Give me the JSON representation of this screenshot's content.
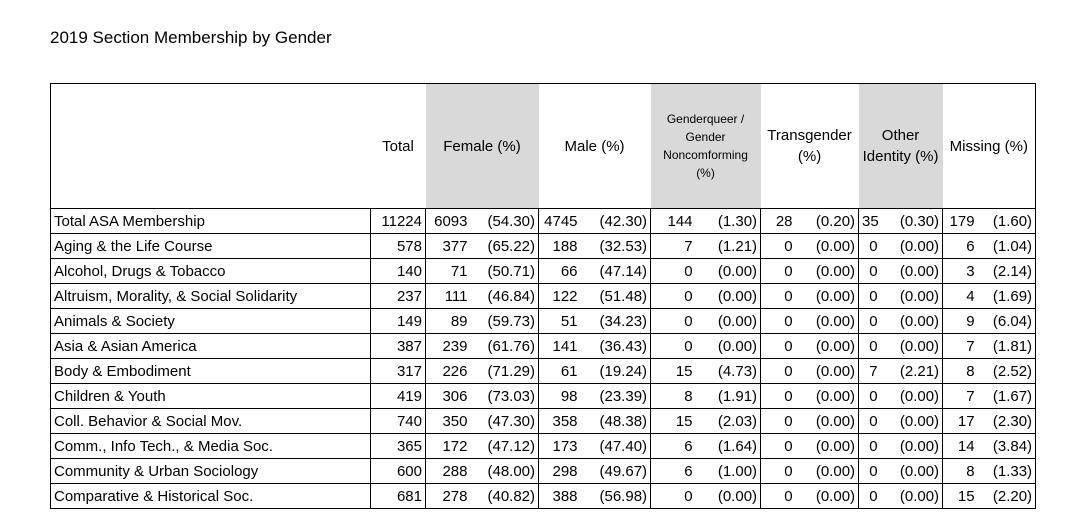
{
  "header": {
    "title": "2019 Section Membership by Gender"
  },
  "table": {
    "columns": [
      "Total",
      "Female (%)",
      "Male (%)",
      "Genderqueer / Gender Noncomforming (%)",
      "Transgender (%)",
      "Other Identity (%)",
      "Missing (%)"
    ],
    "rows": [
      [
        "Total ASA Membership",
        "11224",
        "6093",
        "(54.30)",
        "4745",
        "(42.30)",
        "144",
        "(1.30)",
        "28",
        "(0.20)",
        "35",
        "(0.30)",
        "179",
        "(1.60)"
      ],
      [
        "Aging & the Life Course",
        "578",
        "377",
        "(65.22)",
        "188",
        "(32.53)",
        "7",
        "(1.21)",
        "0",
        "(0.00)",
        "0",
        "(0.00)",
        "6",
        "(1.04)"
      ],
      [
        "Alcohol, Drugs & Tobacco",
        "140",
        "71",
        "(50.71)",
        "66",
        "(47.14)",
        "0",
        "(0.00)",
        "0",
        "(0.00)",
        "0",
        "(0.00)",
        "3",
        "(2.14)"
      ],
      [
        "Altruism, Morality, & Social Solidarity",
        "237",
        "111",
        "(46.84)",
        "122",
        "(51.48)",
        "0",
        "(0.00)",
        "0",
        "(0.00)",
        "0",
        "(0.00)",
        "4",
        "(1.69)"
      ],
      [
        "Animals & Society",
        "149",
        "89",
        "(59.73)",
        "51",
        "(34.23)",
        "0",
        "(0.00)",
        "0",
        "(0.00)",
        "0",
        "(0.00)",
        "9",
        "(6.04)"
      ],
      [
        "Asia & Asian America",
        "387",
        "239",
        "(61.76)",
        "141",
        "(36.43)",
        "0",
        "(0.00)",
        "0",
        "(0.00)",
        "0",
        "(0.00)",
        "7",
        "(1.81)"
      ],
      [
        "Body & Embodiment",
        "317",
        "226",
        "(71.29)",
        "61",
        "(19.24)",
        "15",
        "(4.73)",
        "0",
        "(0.00)",
        "7",
        "(2.21)",
        "8",
        "(2.52)"
      ],
      [
        "Children & Youth",
        "419",
        "306",
        "(73.03)",
        "98",
        "(23.39)",
        "8",
        "(1.91)",
        "0",
        "(0.00)",
        "0",
        "(0.00)",
        "7",
        "(1.67)"
      ],
      [
        "Coll. Behavior & Social Mov.",
        "740",
        "350",
        "(47.30)",
        "358",
        "(48.38)",
        "15",
        "(2.03)",
        "0",
        "(0.00)",
        "0",
        "(0.00)",
        "17",
        "(2.30)"
      ],
      [
        "Comm., Info Tech., & Media Soc.",
        "365",
        "172",
        "(47.12)",
        "173",
        "(47.40)",
        "6",
        "(1.64)",
        "0",
        "(0.00)",
        "0",
        "(0.00)",
        "14",
        "(3.84)"
      ],
      [
        "Community & Urban Sociology",
        "600",
        "288",
        "(48.00)",
        "298",
        "(49.67)",
        "6",
        "(1.00)",
        "0",
        "(0.00)",
        "0",
        "(0.00)",
        "8",
        "(1.33)"
      ],
      [
        "Comparative & Historical Soc.",
        "681",
        "278",
        "(40.82)",
        "388",
        "(56.98)",
        "0",
        "(0.00)",
        "0",
        "(0.00)",
        "0",
        "(0.00)",
        "15",
        "(2.20)"
      ]
    ]
  }
}
